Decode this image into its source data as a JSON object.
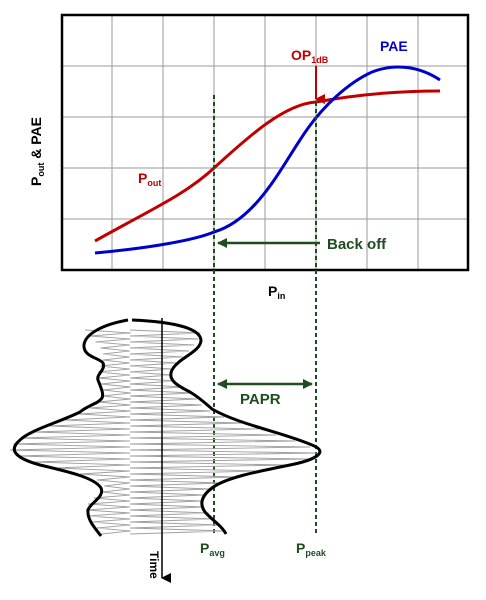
{
  "graph": {
    "y_axis_label": {
      "main": "P",
      "sub": "out",
      "rest": " & PAE"
    },
    "x_axis_label": {
      "main": "P",
      "sub": "in"
    },
    "pout_label": {
      "main": "P",
      "sub": "out"
    },
    "pae_label": "PAE",
    "op1db_label": {
      "main": "OP",
      "sub": "1dB"
    },
    "backoff_label": "Back off"
  },
  "signal": {
    "papr_label": "PAPR",
    "time_label": "Time",
    "pavg_label": {
      "main": "P",
      "sub": "avg"
    },
    "ppeak_label": {
      "main": "P",
      "sub": "peak"
    }
  },
  "colors": {
    "pout_curve": "#c00000",
    "pae_curve": "#0000cc",
    "annotation": "#1f4d1f",
    "grid": "#9a9a9a",
    "frame": "#000000"
  }
}
